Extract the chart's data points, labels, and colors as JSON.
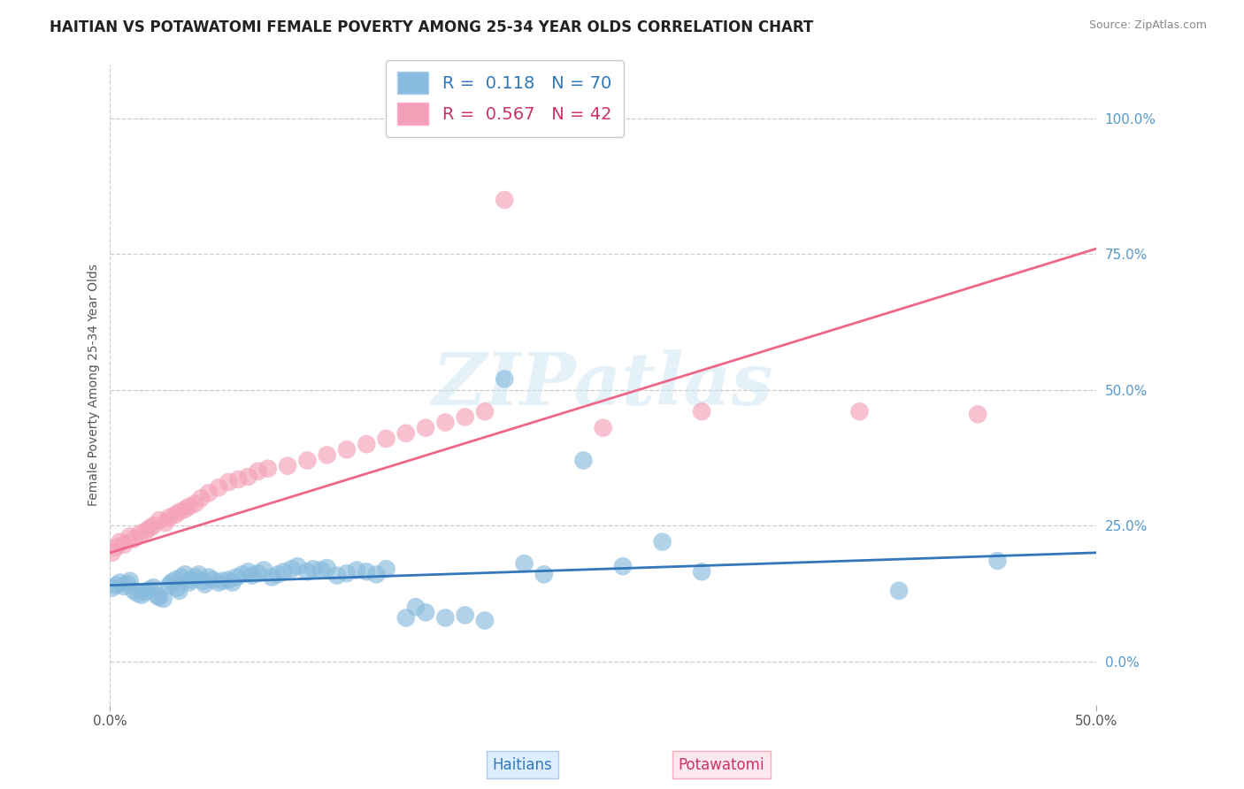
{
  "title": "HAITIAN VS POTAWATOMI FEMALE POVERTY AMONG 25-34 YEAR OLDS CORRELATION CHART",
  "source": "Source: ZipAtlas.com",
  "ylabel": "Female Poverty Among 25-34 Year Olds",
  "xlim": [
    0.0,
    0.5
  ],
  "ylim": [
    -0.08,
    1.1
  ],
  "yticks": [
    0.0,
    0.25,
    0.5,
    0.75,
    1.0
  ],
  "ytick_labels": [
    "0.0%",
    "25.0%",
    "50.0%",
    "75.0%",
    "100.0%"
  ],
  "haitians_color": "#88bbdd",
  "potawatomi_color": "#f4a0b8",
  "haitians_line_color": "#3377bb",
  "potawatomi_line_color": "#ee6688",
  "R_haitians": 0.118,
  "N_haitians": 70,
  "R_potawatomi": 0.567,
  "N_potawatomi": 42,
  "watermark": "ZIPatlas",
  "background_color": "#ffffff",
  "grid_color": "#cccccc",
  "haitians_x": [
    0.001,
    0.003,
    0.005,
    0.007,
    0.009,
    0.01,
    0.012,
    0.014,
    0.016,
    0.018,
    0.02,
    0.022,
    0.024,
    0.025,
    0.027,
    0.03,
    0.031,
    0.033,
    0.034,
    0.035,
    0.036,
    0.038,
    0.04,
    0.041,
    0.043,
    0.045,
    0.047,
    0.048,
    0.05,
    0.052,
    0.055,
    0.057,
    0.06,
    0.062,
    0.064,
    0.067,
    0.07,
    0.072,
    0.075,
    0.078,
    0.082,
    0.085,
    0.088,
    0.092,
    0.095,
    0.1,
    0.103,
    0.107,
    0.11,
    0.115,
    0.12,
    0.125,
    0.13,
    0.135,
    0.14,
    0.15,
    0.155,
    0.16,
    0.17,
    0.18,
    0.19,
    0.2,
    0.21,
    0.22,
    0.24,
    0.26,
    0.28,
    0.3,
    0.4,
    0.45
  ],
  "haitians_y": [
    0.135,
    0.14,
    0.145,
    0.138,
    0.142,
    0.148,
    0.13,
    0.125,
    0.122,
    0.128,
    0.132,
    0.136,
    0.12,
    0.118,
    0.115,
    0.14,
    0.145,
    0.15,
    0.135,
    0.13,
    0.155,
    0.16,
    0.145,
    0.15,
    0.155,
    0.16,
    0.148,
    0.142,
    0.155,
    0.15,
    0.145,
    0.148,
    0.15,
    0.145,
    0.155,
    0.16,
    0.165,
    0.158,
    0.162,
    0.168,
    0.155,
    0.16,
    0.165,
    0.17,
    0.175,
    0.165,
    0.17,
    0.168,
    0.172,
    0.158,
    0.162,
    0.168,
    0.165,
    0.16,
    0.17,
    0.08,
    0.1,
    0.09,
    0.08,
    0.085,
    0.075,
    0.52,
    0.18,
    0.16,
    0.37,
    0.175,
    0.22,
    0.165,
    0.13,
    0.185
  ],
  "potawatomi_x": [
    0.001,
    0.003,
    0.005,
    0.007,
    0.01,
    0.012,
    0.015,
    0.018,
    0.02,
    0.022,
    0.025,
    0.028,
    0.03,
    0.033,
    0.035,
    0.038,
    0.04,
    0.043,
    0.046,
    0.05,
    0.055,
    0.06,
    0.065,
    0.07,
    0.075,
    0.08,
    0.09,
    0.1,
    0.11,
    0.12,
    0.13,
    0.14,
    0.15,
    0.16,
    0.17,
    0.18,
    0.19,
    0.2,
    0.25,
    0.3,
    0.38,
    0.44
  ],
  "potawatomi_y": [
    0.2,
    0.21,
    0.22,
    0.215,
    0.23,
    0.225,
    0.235,
    0.24,
    0.245,
    0.25,
    0.26,
    0.255,
    0.265,
    0.27,
    0.275,
    0.28,
    0.285,
    0.29,
    0.3,
    0.31,
    0.32,
    0.33,
    0.335,
    0.34,
    0.35,
    0.355,
    0.36,
    0.37,
    0.38,
    0.39,
    0.4,
    0.41,
    0.42,
    0.43,
    0.44,
    0.45,
    0.46,
    0.85,
    0.43,
    0.46,
    0.46,
    0.455
  ]
}
